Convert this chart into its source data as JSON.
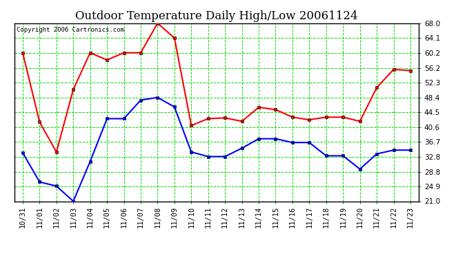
{
  "title": "Outdoor Temperature Daily High/Low 20061124",
  "copyright": "Copyright 2006 Cartronics.com",
  "x_labels": [
    "10/31",
    "11/01",
    "11/02",
    "11/03",
    "11/04",
    "11/05",
    "11/06",
    "11/07",
    "11/08",
    "11/09",
    "11/10",
    "11/11",
    "11/12",
    "11/13",
    "11/14",
    "11/15",
    "11/16",
    "11/17",
    "11/18",
    "11/19",
    "11/20",
    "11/21",
    "11/22",
    "11/23"
  ],
  "high_values": [
    60.2,
    41.9,
    34.0,
    50.5,
    60.2,
    58.3,
    60.2,
    60.2,
    68.0,
    64.1,
    41.0,
    42.8,
    43.0,
    42.1,
    45.8,
    45.2,
    43.2,
    42.5,
    43.2,
    43.2,
    42.1,
    51.0,
    55.8,
    55.5
  ],
  "low_values": [
    33.8,
    26.1,
    25.0,
    21.0,
    31.5,
    42.8,
    42.8,
    47.7,
    48.4,
    45.9,
    34.0,
    32.8,
    32.8,
    35.0,
    37.5,
    37.5,
    36.5,
    36.5,
    33.0,
    33.0,
    29.5,
    33.5,
    34.5,
    34.5
  ],
  "high_color": "#ff0000",
  "low_color": "#0000ff",
  "bg_color": "#ffffff",
  "plot_bg_color": "#ffffff",
  "grid_color": "#00dd00",
  "border_color": "#000000",
  "y_ticks": [
    21.0,
    24.9,
    28.8,
    32.8,
    36.7,
    40.6,
    44.5,
    48.4,
    52.3,
    56.2,
    60.2,
    64.1,
    68.0
  ],
  "y_min": 21.0,
  "y_max": 68.0,
  "marker": "s",
  "marker_size": 3,
  "line_width": 1.5,
  "title_fontsize": 12,
  "tick_fontsize": 7.5,
  "copyright_fontsize": 6.5
}
